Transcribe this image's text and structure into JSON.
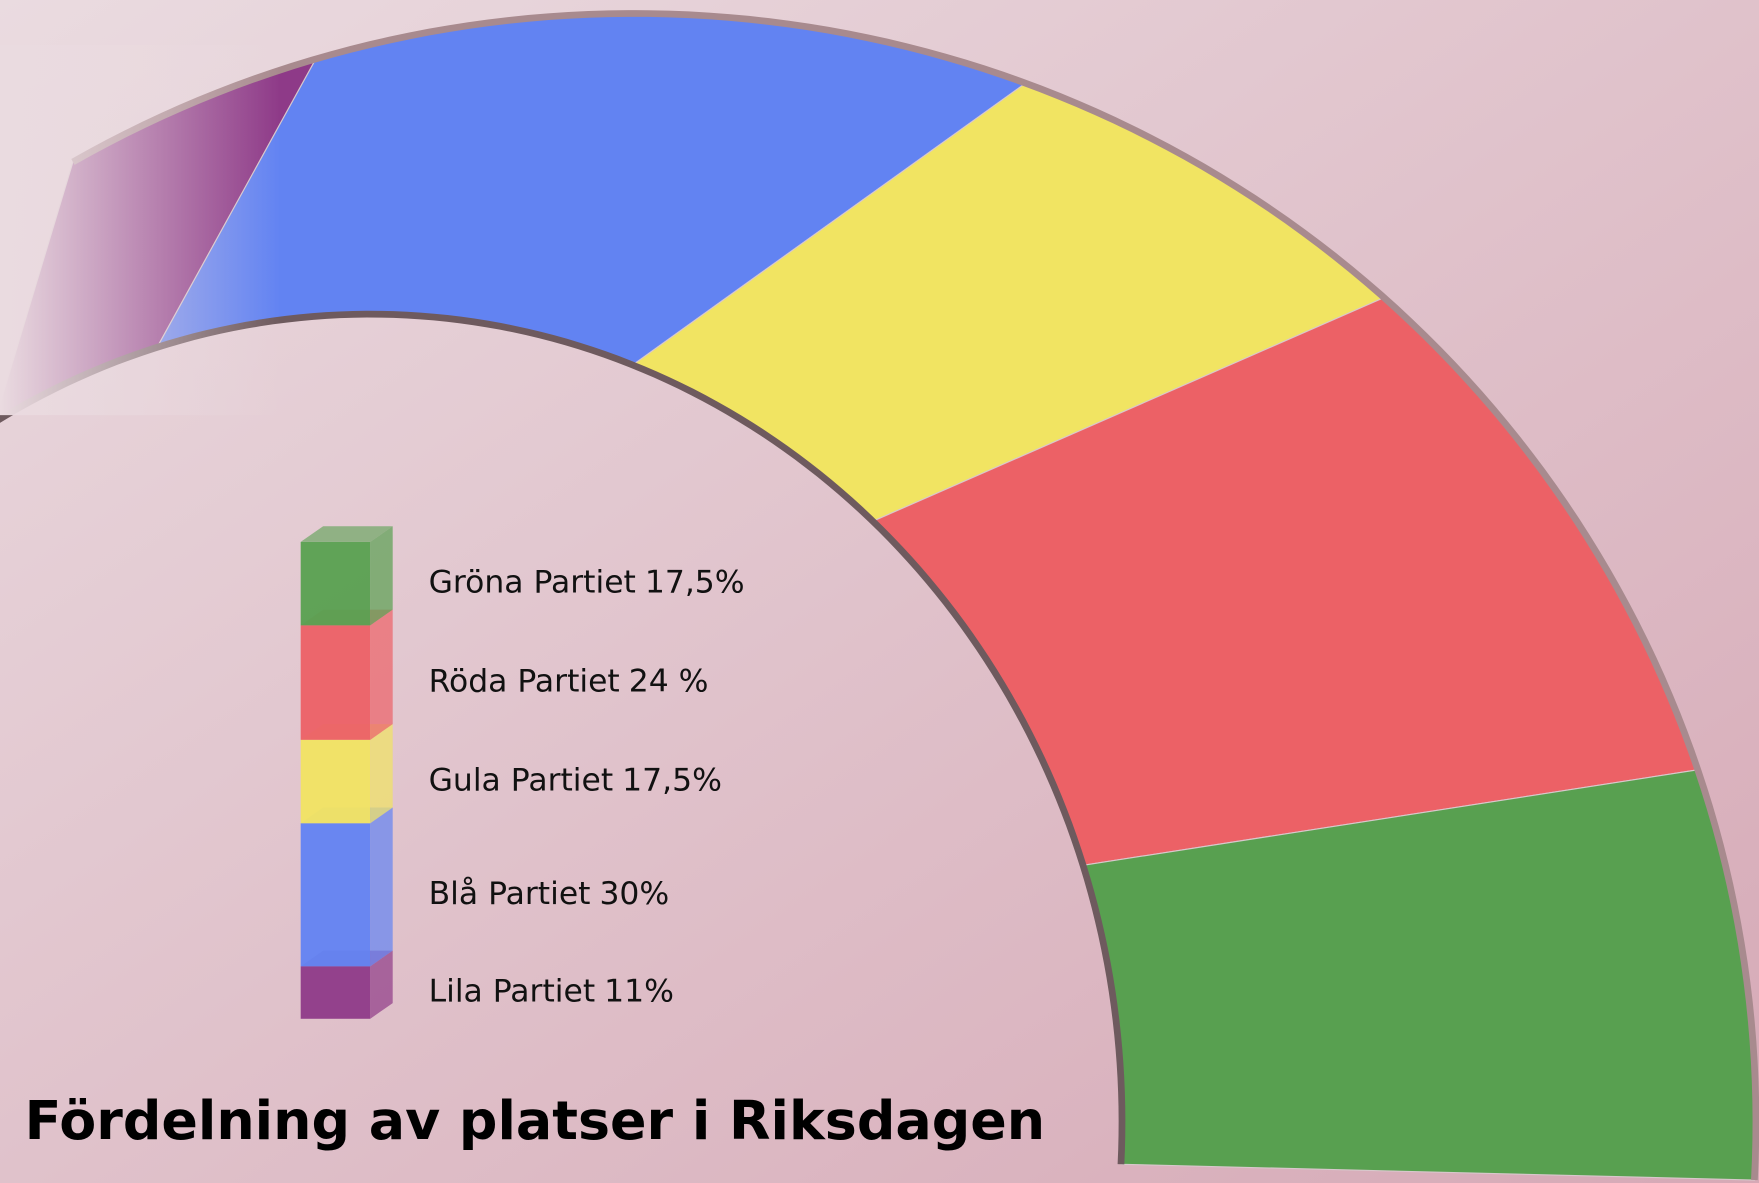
{
  "chart_data": {
    "type": "semi-donut",
    "title": "Fördelning av platser i Riksdagen",
    "categories": [
      "Gröna Partiet",
      "Röda Partiet",
      "Gula Partiet",
      "Blå Partiet",
      "Lila Partiet"
    ],
    "values": [
      17.5,
      24,
      17.5,
      30,
      11
    ],
    "value_labels": [
      "17,5%",
      "24 %",
      "17,5%",
      "30%",
      "11%"
    ],
    "colors": [
      "#58a050",
      "#ec6166",
      "#f1e462",
      "#6283f2",
      "#8e3a88"
    ]
  }
}
